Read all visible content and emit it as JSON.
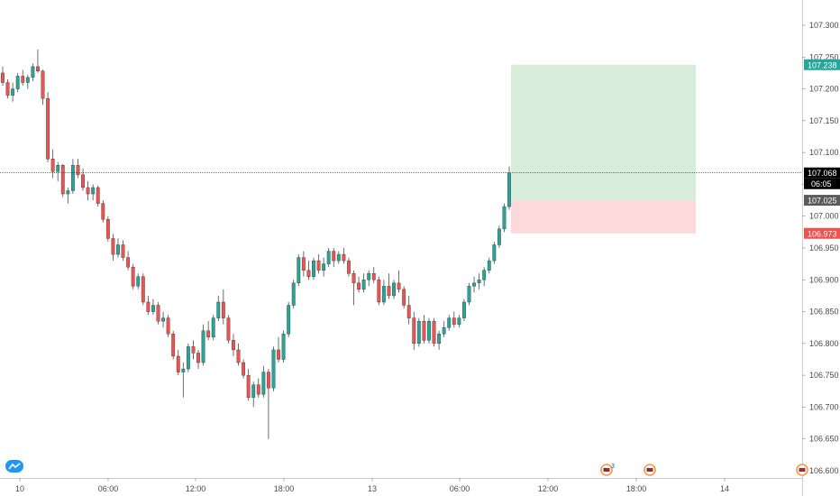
{
  "chart_data": {
    "type": "candlestick",
    "y_ticks": [
      "107.300",
      "107.250",
      "107.200",
      "107.150",
      "107.100",
      "107.050",
      "107.000",
      "106.950",
      "106.900",
      "106.850",
      "106.800",
      "106.750",
      "106.700",
      "106.650",
      "106.600"
    ],
    "x_ticks": [
      "10",
      "06:00",
      "12:00",
      "18:00",
      "13",
      "06:00",
      "12:00",
      "18:00",
      "14"
    ],
    "ylim": [
      106.585,
      107.335
    ],
    "grid": false,
    "crosshair_price": "107.068",
    "countdown": "06:05",
    "price_tags": [
      {
        "label": "107.238",
        "color": "#26a69a"
      },
      {
        "label": "107.068",
        "color": "#000000"
      },
      {
        "label": "107.025",
        "color": "#5a5a5a"
      },
      {
        "label": "106.973",
        "color": "#ef5350"
      }
    ],
    "position": {
      "target": 107.238,
      "entry": 107.025,
      "stop": 106.973
    },
    "event_badge_count": "3",
    "colors": {
      "up": "#26a69a",
      "down": "#ef5350",
      "wick": "#4a4a4a",
      "profit_zone": "#d8edd9",
      "loss_zone": "#fcdadb"
    },
    "candles": [
      [
        107.225,
        107.235,
        107.205,
        107.21
      ],
      [
        107.21,
        107.215,
        107.185,
        107.19
      ],
      [
        107.19,
        107.21,
        107.18,
        107.2
      ],
      [
        107.2,
        107.225,
        107.195,
        107.22
      ],
      [
        107.22,
        107.23,
        107.205,
        107.21
      ],
      [
        107.21,
        107.222,
        107.2,
        107.218
      ],
      [
        107.218,
        107.24,
        107.212,
        107.235
      ],
      [
        107.235,
        107.262,
        107.225,
        107.228
      ],
      [
        107.228,
        107.23,
        107.175,
        107.185
      ],
      [
        107.185,
        107.195,
        107.085,
        107.09
      ],
      [
        107.09,
        107.105,
        107.06,
        107.07
      ],
      [
        107.07,
        107.085,
        107.055,
        107.08
      ],
      [
        107.08,
        107.082,
        107.03,
        107.035
      ],
      [
        107.035,
        107.045,
        107.02,
        107.04
      ],
      [
        107.04,
        107.09,
        107.035,
        107.08
      ],
      [
        107.08,
        107.09,
        107.06,
        107.065
      ],
      [
        107.065,
        107.075,
        107.04,
        107.045
      ],
      [
        107.045,
        107.055,
        107.025,
        107.035
      ],
      [
        107.035,
        107.05,
        107.025,
        107.045
      ],
      [
        107.045,
        107.048,
        107.015,
        107.02
      ],
      [
        107.02,
        107.025,
        106.99,
        106.995
      ],
      [
        106.995,
        107.0,
        106.96,
        106.965
      ],
      [
        106.965,
        106.972,
        106.93,
        106.94
      ],
      [
        106.94,
        106.965,
        106.935,
        106.955
      ],
      [
        106.955,
        106.962,
        106.93,
        106.935
      ],
      [
        106.935,
        106.945,
        106.915,
        106.92
      ],
      [
        106.92,
        106.925,
        106.885,
        106.89
      ],
      [
        106.89,
        106.91,
        106.885,
        106.905
      ],
      [
        106.905,
        106.91,
        106.86,
        106.865
      ],
      [
        106.865,
        106.875,
        106.845,
        106.85
      ],
      [
        106.85,
        106.87,
        106.845,
        106.86
      ],
      [
        106.86,
        106.865,
        106.83,
        106.835
      ],
      [
        106.835,
        106.85,
        106.825,
        106.84
      ],
      [
        106.84,
        106.845,
        106.81,
        106.815
      ],
      [
        106.815,
        106.82,
        106.775,
        106.78
      ],
      [
        106.78,
        106.79,
        106.75,
        106.755
      ],
      [
        106.755,
        106.77,
        106.715,
        106.76
      ],
      [
        106.76,
        106.8,
        106.755,
        106.795
      ],
      [
        106.795,
        106.805,
        106.775,
        106.785
      ],
      [
        106.785,
        106.79,
        106.76,
        106.77
      ],
      [
        106.77,
        106.83,
        106.765,
        106.82
      ],
      [
        106.82,
        106.835,
        106.805,
        106.81
      ],
      [
        106.81,
        106.845,
        106.805,
        106.84
      ],
      [
        106.84,
        106.875,
        106.835,
        106.865
      ],
      [
        106.865,
        106.885,
        106.83,
        106.84
      ],
      [
        106.84,
        106.845,
        106.8,
        106.805
      ],
      [
        106.805,
        106.815,
        106.78,
        106.79
      ],
      [
        106.79,
        106.8,
        106.765,
        106.77
      ],
      [
        106.77,
        106.775,
        106.745,
        106.75
      ],
      [
        106.75,
        106.76,
        106.71,
        106.715
      ],
      [
        106.715,
        106.74,
        106.7,
        106.735
      ],
      [
        106.735,
        106.745,
        106.715,
        106.72
      ],
      [
        106.72,
        106.765,
        106.715,
        106.755
      ],
      [
        106.755,
        106.76,
        106.65,
        106.73
      ],
      [
        106.73,
        106.795,
        106.725,
        106.79
      ],
      [
        106.79,
        106.81,
        106.77,
        106.775
      ],
      [
        106.775,
        106.82,
        106.77,
        106.815
      ],
      [
        106.815,
        106.865,
        106.81,
        106.86
      ],
      [
        106.86,
        106.9,
        106.855,
        106.895
      ],
      [
        106.895,
        106.94,
        106.89,
        106.935
      ],
      [
        106.935,
        106.945,
        106.905,
        106.915
      ],
      [
        106.915,
        106.93,
        106.9,
        106.905
      ],
      [
        106.905,
        106.935,
        106.9,
        106.93
      ],
      [
        106.93,
        106.94,
        106.91,
        106.915
      ],
      [
        106.915,
        106.935,
        106.905,
        106.925
      ],
      [
        106.925,
        106.95,
        106.92,
        106.945
      ],
      [
        106.945,
        106.95,
        106.92,
        106.93
      ],
      [
        106.93,
        106.945,
        106.925,
        106.94
      ],
      [
        106.94,
        106.95,
        106.925,
        106.93
      ],
      [
        106.93,
        106.935,
        106.905,
        106.91
      ],
      [
        106.91,
        106.915,
        106.86,
        106.895
      ],
      [
        106.895,
        106.905,
        106.88,
        106.885
      ],
      [
        106.885,
        106.91,
        106.88,
        106.9
      ],
      [
        106.9,
        106.915,
        106.89,
        106.91
      ],
      [
        106.91,
        106.92,
        106.895,
        106.9
      ],
      [
        106.9,
        106.905,
        106.86,
        106.865
      ],
      [
        106.865,
        106.9,
        106.86,
        106.89
      ],
      [
        106.89,
        106.91,
        106.87,
        106.875
      ],
      [
        106.875,
        106.9,
        106.87,
        106.895
      ],
      [
        106.895,
        106.915,
        106.88,
        106.885
      ],
      [
        106.885,
        106.89,
        106.855,
        106.86
      ],
      [
        106.86,
        106.875,
        106.83,
        106.84
      ],
      [
        106.84,
        106.85,
        106.79,
        106.8
      ],
      [
        106.8,
        106.84,
        106.795,
        106.835
      ],
      [
        106.835,
        106.845,
        106.8,
        106.805
      ],
      [
        106.805,
        106.84,
        106.8,
        106.835
      ],
      [
        106.835,
        106.84,
        106.795,
        106.8
      ],
      [
        106.8,
        106.82,
        106.79,
        106.815
      ],
      [
        106.815,
        106.835,
        106.81,
        106.825
      ],
      [
        106.825,
        106.845,
        106.82,
        106.84
      ],
      [
        106.84,
        106.85,
        106.825,
        106.83
      ],
      [
        106.83,
        106.845,
        106.825,
        106.84
      ],
      [
        106.84,
        106.87,
        106.835,
        106.865
      ],
      [
        106.865,
        106.895,
        106.86,
        106.89
      ],
      [
        106.89,
        106.905,
        106.88,
        106.895
      ],
      [
        106.895,
        106.91,
        106.885,
        106.9
      ],
      [
        106.9,
        106.92,
        106.89,
        106.915
      ],
      [
        106.915,
        106.935,
        106.91,
        106.93
      ],
      [
        106.93,
        106.96,
        106.925,
        106.955
      ],
      [
        106.955,
        106.985,
        106.95,
        106.98
      ],
      [
        106.98,
        107.02,
        106.975,
        107.015
      ],
      [
        107.015,
        107.078,
        107.01,
        107.068
      ]
    ]
  }
}
